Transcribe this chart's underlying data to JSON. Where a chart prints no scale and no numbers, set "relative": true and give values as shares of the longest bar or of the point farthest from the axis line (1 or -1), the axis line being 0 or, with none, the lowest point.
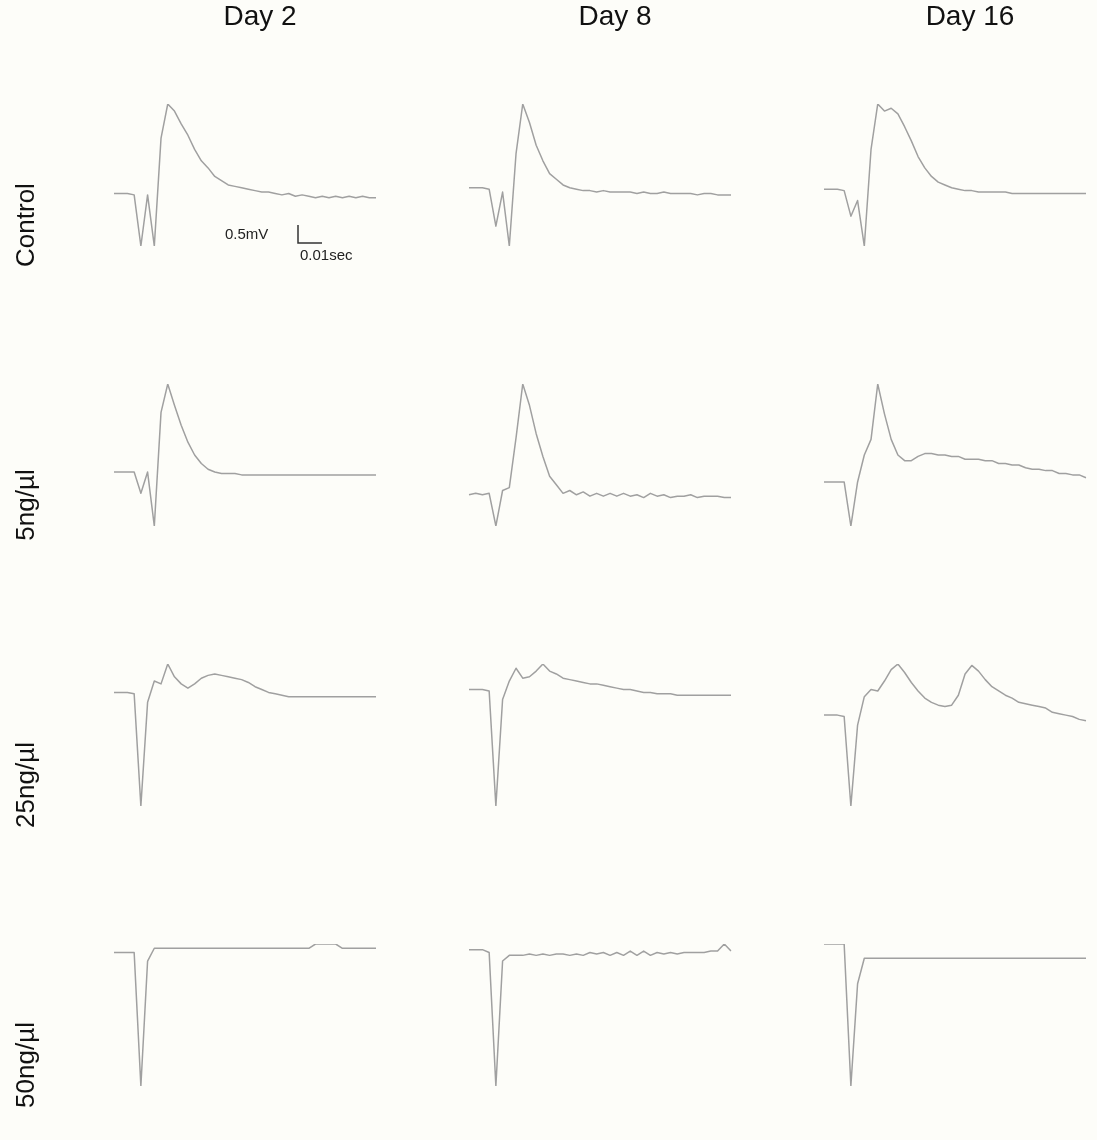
{
  "chart_data": [
    {
      "type": "line",
      "title": "Day 2",
      "ylabel": "Control",
      "relative": true,
      "color": "#a0a0a0",
      "marker": "none",
      "annotations": [
        "0.5mV",
        "0.01sec"
      ],
      "categories": [
        null,
        null,
        null,
        null,
        null,
        null,
        null,
        null,
        null,
        null,
        null,
        null,
        null,
        null,
        null,
        null,
        null,
        null,
        null,
        null,
        null,
        null,
        null,
        null,
        null,
        null,
        null,
        null,
        null,
        null,
        null,
        null,
        null,
        null,
        null,
        null,
        null,
        null,
        null,
        null
      ],
      "values": [
        0.37,
        0.37,
        0.37,
        0.36,
        0,
        0.36,
        0,
        0.76,
        1,
        0.95,
        0.86,
        0.78,
        0.68,
        0.6,
        0.55,
        0.49,
        0.46,
        0.43,
        0.42,
        0.41,
        0.4,
        0.39,
        0.38,
        0.38,
        0.37,
        0.36,
        0.37,
        0.35,
        0.36,
        0.35,
        0.34,
        0.35,
        0.34,
        0.35,
        0.34,
        0.35,
        0.34,
        0.35,
        0.34,
        0.34
      ]
    },
    {
      "type": "line",
      "title": "Day 8",
      "relative": true,
      "color": "#a0a0a0",
      "marker": "none",
      "categories": [
        null,
        null,
        null,
        null,
        null,
        null,
        null,
        null,
        null,
        null,
        null,
        null,
        null,
        null,
        null,
        null,
        null,
        null,
        null,
        null,
        null,
        null,
        null,
        null,
        null,
        null,
        null,
        null,
        null,
        null,
        null,
        null,
        null,
        null,
        null,
        null,
        null,
        null,
        null,
        null
      ],
      "values": [
        0.41,
        0.41,
        0.41,
        0.4,
        0.14,
        0.38,
        0,
        0.65,
        1,
        0.87,
        0.71,
        0.6,
        0.51,
        0.47,
        0.43,
        0.41,
        0.4,
        0.39,
        0.39,
        0.38,
        0.39,
        0.38,
        0.38,
        0.38,
        0.38,
        0.37,
        0.38,
        0.37,
        0.37,
        0.38,
        0.37,
        0.37,
        0.37,
        0.37,
        0.36,
        0.37,
        0.37,
        0.36,
        0.36,
        0.36
      ]
    },
    {
      "type": "line",
      "title": "Day 16",
      "relative": true,
      "color": "#a0a0a0",
      "marker": "none",
      "categories": [
        null,
        null,
        null,
        null,
        null,
        null,
        null,
        null,
        null,
        null,
        null,
        null,
        null,
        null,
        null,
        null,
        null,
        null,
        null,
        null,
        null,
        null,
        null,
        null,
        null,
        null,
        null,
        null,
        null,
        null,
        null,
        null,
        null,
        null,
        null,
        null,
        null,
        null,
        null,
        null
      ],
      "values": [
        0.4,
        0.4,
        0.4,
        0.39,
        0.21,
        0.32,
        0,
        0.68,
        1,
        0.95,
        0.97,
        0.93,
        0.84,
        0.74,
        0.63,
        0.55,
        0.49,
        0.45,
        0.43,
        0.41,
        0.4,
        0.39,
        0.39,
        0.38,
        0.38,
        0.38,
        0.38,
        0.38,
        0.37,
        0.37,
        0.37,
        0.37,
        0.37,
        0.37,
        0.37,
        0.37,
        0.37,
        0.37,
        0.37,
        0.37
      ]
    },
    {
      "type": "line",
      "ylabel": "5ng/µl",
      "relative": true,
      "color": "#a0a0a0",
      "marker": "none",
      "categories": [
        null,
        null,
        null,
        null,
        null,
        null,
        null,
        null,
        null,
        null,
        null,
        null,
        null,
        null,
        null,
        null,
        null,
        null,
        null,
        null,
        null,
        null,
        null,
        null,
        null,
        null,
        null,
        null,
        null,
        null,
        null,
        null,
        null,
        null,
        null,
        null,
        null,
        null,
        null,
        null
      ],
      "values": [
        0.38,
        0.38,
        0.38,
        0.38,
        0.23,
        0.38,
        0,
        0.8,
        1,
        0.85,
        0.71,
        0.59,
        0.5,
        0.44,
        0.4,
        0.38,
        0.37,
        0.37,
        0.37,
        0.36,
        0.36,
        0.36,
        0.36,
        0.36,
        0.36,
        0.36,
        0.36,
        0.36,
        0.36,
        0.36,
        0.36,
        0.36,
        0.36,
        0.36,
        0.36,
        0.36,
        0.36,
        0.36,
        0.36,
        0.36
      ]
    },
    {
      "type": "line",
      "relative": true,
      "color": "#a0a0a0",
      "marker": "none",
      "categories": [
        null,
        null,
        null,
        null,
        null,
        null,
        null,
        null,
        null,
        null,
        null,
        null,
        null,
        null,
        null,
        null,
        null,
        null,
        null,
        null,
        null,
        null,
        null,
        null,
        null,
        null,
        null,
        null,
        null,
        null,
        null,
        null,
        null,
        null,
        null,
        null,
        null,
        null,
        null,
        null
      ],
      "values": [
        0.22,
        0.23,
        0.22,
        0.23,
        0,
        0.25,
        0.27,
        0.62,
        1,
        0.85,
        0.65,
        0.49,
        0.35,
        0.29,
        0.23,
        0.25,
        0.22,
        0.24,
        0.21,
        0.23,
        0.21,
        0.23,
        0.21,
        0.23,
        0.21,
        0.22,
        0.2,
        0.23,
        0.21,
        0.22,
        0.2,
        0.21,
        0.21,
        0.22,
        0.2,
        0.21,
        0.21,
        0.21,
        0.2,
        0.2
      ]
    },
    {
      "type": "line",
      "relative": true,
      "color": "#a0a0a0",
      "marker": "none",
      "categories": [
        null,
        null,
        null,
        null,
        null,
        null,
        null,
        null,
        null,
        null,
        null,
        null,
        null,
        null,
        null,
        null,
        null,
        null,
        null,
        null,
        null,
        null,
        null,
        null,
        null,
        null,
        null,
        null,
        null,
        null,
        null,
        null,
        null,
        null,
        null,
        null,
        null,
        null,
        null,
        null
      ],
      "values": [
        0.31,
        0.31,
        0.31,
        0.31,
        0,
        0.31,
        0.5,
        0.61,
        1,
        0.79,
        0.61,
        0.5,
        0.46,
        0.46,
        0.49,
        0.51,
        0.51,
        0.5,
        0.5,
        0.49,
        0.49,
        0.47,
        0.47,
        0.47,
        0.46,
        0.46,
        0.44,
        0.44,
        0.43,
        0.43,
        0.41,
        0.4,
        0.4,
        0.39,
        0.39,
        0.37,
        0.37,
        0.36,
        0.36,
        0.34
      ]
    },
    {
      "type": "line",
      "ylabel": "25ng/µl",
      "relative": true,
      "color": "#a0a0a0",
      "marker": "none",
      "categories": [
        null,
        null,
        null,
        null,
        null,
        null,
        null,
        null,
        null,
        null,
        null,
        null,
        null,
        null,
        null,
        null,
        null,
        null,
        null,
        null,
        null,
        null,
        null,
        null,
        null,
        null,
        null,
        null,
        null,
        null,
        null,
        null,
        null,
        null,
        null,
        null,
        null,
        null,
        null,
        null
      ],
      "values": [
        0.8,
        0.8,
        0.8,
        0.79,
        0,
        0.73,
        0.88,
        0.86,
        1,
        0.91,
        0.86,
        0.83,
        0.86,
        0.9,
        0.92,
        0.93,
        0.92,
        0.91,
        0.9,
        0.89,
        0.87,
        0.84,
        0.82,
        0.8,
        0.79,
        0.78,
        0.77,
        0.77,
        0.77,
        0.77,
        0.77,
        0.77,
        0.77,
        0.77,
        0.77,
        0.77,
        0.77,
        0.77,
        0.77,
        0.77
      ]
    },
    {
      "type": "line",
      "relative": true,
      "color": "#a0a0a0",
      "marker": "none",
      "categories": [
        null,
        null,
        null,
        null,
        null,
        null,
        null,
        null,
        null,
        null,
        null,
        null,
        null,
        null,
        null,
        null,
        null,
        null,
        null,
        null,
        null,
        null,
        null,
        null,
        null,
        null,
        null,
        null,
        null,
        null,
        null,
        null,
        null,
        null,
        null,
        null,
        null,
        null,
        null,
        null
      ],
      "values": [
        0.82,
        0.82,
        0.82,
        0.81,
        0,
        0.75,
        0.88,
        0.97,
        0.9,
        0.91,
        0.95,
        1,
        0.95,
        0.93,
        0.9,
        0.89,
        0.88,
        0.87,
        0.86,
        0.86,
        0.85,
        0.84,
        0.83,
        0.82,
        0.82,
        0.81,
        0.8,
        0.8,
        0.79,
        0.79,
        0.79,
        0.78,
        0.78,
        0.78,
        0.78,
        0.78,
        0.78,
        0.78,
        0.78,
        0.78
      ]
    },
    {
      "type": "line",
      "relative": true,
      "color": "#a0a0a0",
      "marker": "none",
      "categories": [
        null,
        null,
        null,
        null,
        null,
        null,
        null,
        null,
        null,
        null,
        null,
        null,
        null,
        null,
        null,
        null,
        null,
        null,
        null,
        null,
        null,
        null,
        null,
        null,
        null,
        null,
        null,
        null,
        null,
        null,
        null,
        null,
        null,
        null,
        null,
        null,
        null,
        null,
        null,
        null
      ],
      "values": [
        0.64,
        0.64,
        0.64,
        0.63,
        0,
        0.57,
        0.77,
        0.82,
        0.81,
        0.88,
        0.96,
        1,
        0.94,
        0.87,
        0.81,
        0.76,
        0.73,
        0.71,
        0.7,
        0.71,
        0.78,
        0.93,
        0.99,
        0.95,
        0.89,
        0.84,
        0.81,
        0.78,
        0.76,
        0.73,
        0.72,
        0.71,
        0.7,
        0.69,
        0.66,
        0.65,
        0.64,
        0.63,
        0.61,
        0.6
      ]
    },
    {
      "type": "line",
      "ylabel": "50ng/µl",
      "relative": true,
      "color": "#a0a0a0",
      "marker": "none",
      "categories": [
        null,
        null,
        null,
        null,
        null,
        null,
        null,
        null,
        null,
        null,
        null,
        null,
        null,
        null,
        null,
        null,
        null,
        null,
        null,
        null,
        null,
        null,
        null,
        null,
        null,
        null,
        null,
        null,
        null,
        null,
        null,
        null,
        null,
        null,
        null,
        null,
        null,
        null,
        null,
        null
      ],
      "values": [
        0.94,
        0.94,
        0.94,
        0.94,
        0,
        0.88,
        0.97,
        0.97,
        0.97,
        0.97,
        0.97,
        0.97,
        0.97,
        0.97,
        0.97,
        0.97,
        0.97,
        0.97,
        0.97,
        0.97,
        0.97,
        0.97,
        0.97,
        0.97,
        0.97,
        0.97,
        0.97,
        0.97,
        0.97,
        0.97,
        1,
        1,
        1,
        1,
        0.97,
        0.97,
        0.97,
        0.97,
        0.97,
        0.97
      ]
    },
    {
      "type": "line",
      "relative": true,
      "color": "#a0a0a0",
      "marker": "none",
      "categories": [
        null,
        null,
        null,
        null,
        null,
        null,
        null,
        null,
        null,
        null,
        null,
        null,
        null,
        null,
        null,
        null,
        null,
        null,
        null,
        null,
        null,
        null,
        null,
        null,
        null,
        null,
        null,
        null,
        null,
        null,
        null,
        null,
        null,
        null,
        null,
        null,
        null,
        null,
        null,
        null
      ],
      "values": [
        0.96,
        0.96,
        0.96,
        0.94,
        0,
        0.88,
        0.92,
        0.92,
        0.92,
        0.93,
        0.92,
        0.93,
        0.92,
        0.93,
        0.93,
        0.92,
        0.93,
        0.92,
        0.94,
        0.93,
        0.94,
        0.92,
        0.94,
        0.92,
        0.95,
        0.92,
        0.95,
        0.92,
        0.94,
        0.93,
        0.94,
        0.93,
        0.94,
        0.94,
        0.94,
        0.94,
        0.95,
        0.95,
        1,
        0.95
      ]
    },
    {
      "type": "line",
      "relative": true,
      "color": "#a0a0a0",
      "marker": "none",
      "categories": [
        null,
        null,
        null,
        null,
        null,
        null,
        null,
        null,
        null,
        null,
        null,
        null,
        null,
        null,
        null,
        null,
        null,
        null,
        null,
        null,
        null,
        null,
        null,
        null,
        null,
        null,
        null,
        null,
        null,
        null,
        null,
        null,
        null,
        null,
        null,
        null,
        null,
        null,
        null,
        null
      ],
      "values": [
        1,
        1,
        1,
        1,
        0,
        0.72,
        0.9,
        0.9,
        0.9,
        0.9,
        0.9,
        0.9,
        0.9,
        0.9,
        0.9,
        0.9,
        0.9,
        0.9,
        0.9,
        0.9,
        0.9,
        0.9,
        0.9,
        0.9,
        0.9,
        0.9,
        0.9,
        0.9,
        0.9,
        0.9,
        0.9,
        0.9,
        0.9,
        0.9,
        0.9,
        0.9,
        0.9,
        0.9,
        0.9,
        0.9
      ]
    }
  ]
}
